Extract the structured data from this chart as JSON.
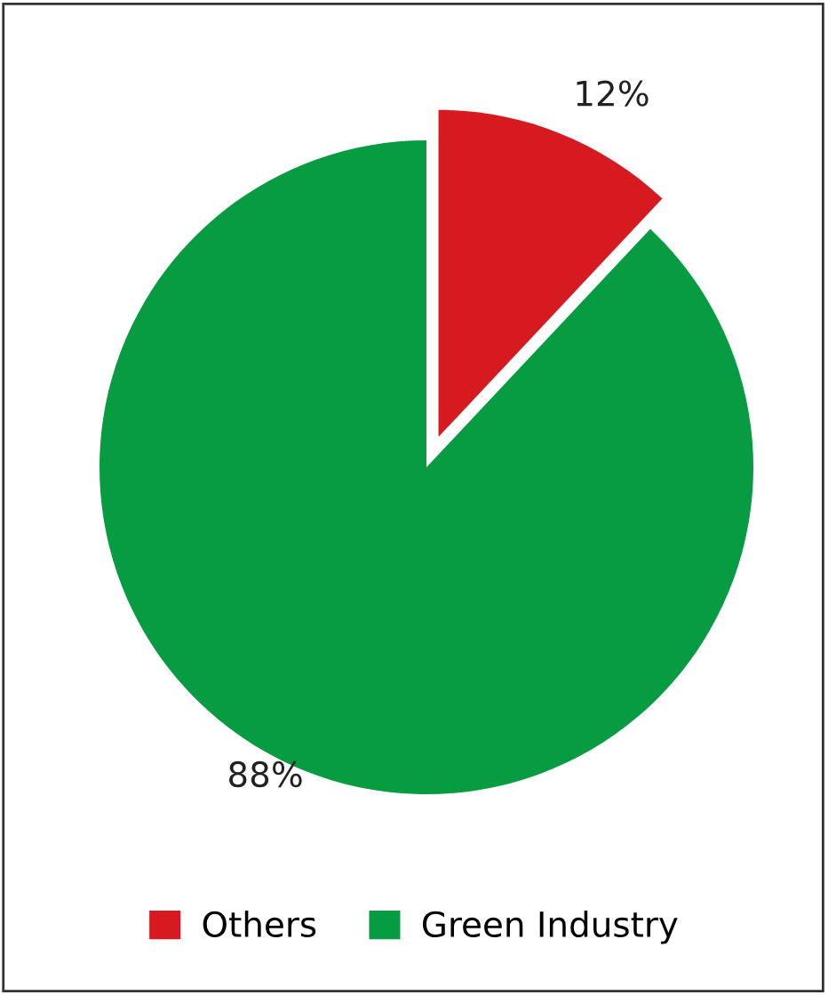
{
  "chart_data": {
    "type": "pie",
    "categories": [
      "Others",
      "Green Industry"
    ],
    "values": [
      12,
      88
    ],
    "colors": [
      "#d71920",
      "#079c41"
    ],
    "value_labels": [
      "12%",
      "88%"
    ],
    "legend": "bottom"
  }
}
